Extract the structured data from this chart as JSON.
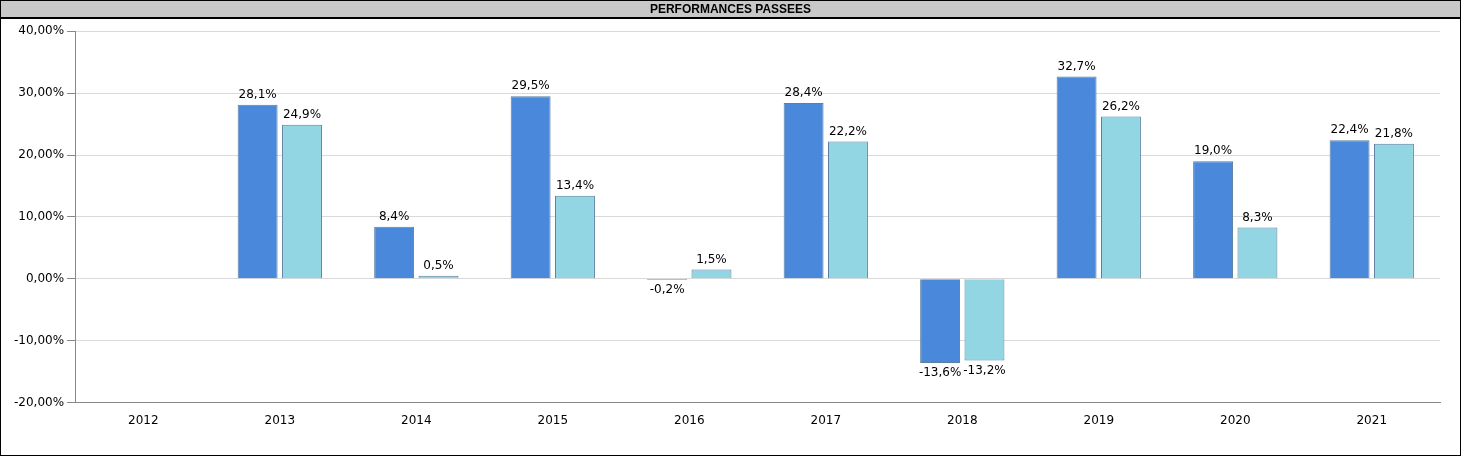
{
  "chart_data": {
    "type": "bar",
    "title": "PERFORMANCES PASSEES",
    "categories": [
      "2012",
      "2013",
      "2014",
      "2015",
      "2016",
      "2017",
      "2018",
      "2019",
      "2020",
      "2021"
    ],
    "series": [
      {
        "color": "#4a88dc",
        "values": [
          null,
          28.1,
          8.4,
          29.5,
          -0.2,
          28.4,
          -13.6,
          32.7,
          19.0,
          22.4
        ],
        "value_labels": [
          null,
          "28,1%",
          "8,4%",
          "29,5%",
          "-0,2%",
          "28,4%",
          "-13,6%",
          "32,7%",
          "19,0%",
          "22,4%"
        ]
      },
      {
        "color": "#92d6e3",
        "values": [
          null,
          24.9,
          0.5,
          13.4,
          1.5,
          22.2,
          -13.2,
          26.2,
          8.3,
          21.8
        ],
        "value_labels": [
          null,
          "24,9%",
          "0,5%",
          "13,4%",
          "1,5%",
          "22,2%",
          "-13,2%",
          "26,2%",
          "8,3%",
          "21,8%"
        ]
      }
    ],
    "ylim": [
      -20,
      40
    ],
    "yticks": [
      {
        "value": -20,
        "label": "-20,00%"
      },
      {
        "value": -10,
        "label": "-10,00%"
      },
      {
        "value": 0,
        "label": "0,00%"
      },
      {
        "value": 10,
        "label": "10,00%"
      },
      {
        "value": 20,
        "label": "20,00%"
      },
      {
        "value": 30,
        "label": "30,00%"
      },
      {
        "value": 40,
        "label": "40,00%"
      }
    ],
    "grid": "y",
    "legend": false
  }
}
